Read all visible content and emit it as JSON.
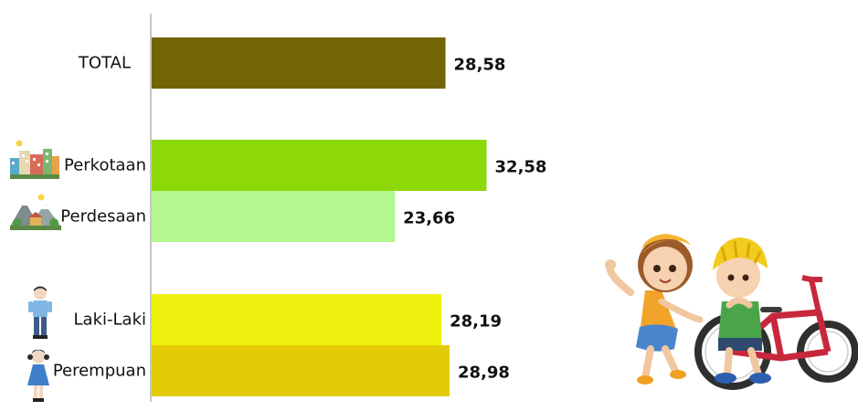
{
  "chart_data": {
    "type": "bar",
    "orientation": "horizontal",
    "categories": [
      "TOTAL",
      "Perkotaan",
      "Perdesaan",
      "Laki-Laki",
      "Perempuan"
    ],
    "values": [
      28.58,
      32.58,
      23.66,
      28.19,
      28.98
    ],
    "value_labels": [
      "28,58",
      "32,58",
      "23,66",
      "28,19",
      "28,98"
    ],
    "xlim": [
      0,
      40
    ],
    "grid": false,
    "legend": "none"
  },
  "colors": {
    "TOTAL": "#726505",
    "Perkotaan": "#8dd907",
    "Perdesaan": "#b3f88f",
    "Laki-Laki": "#eef10e",
    "Perempuan": "#e3cc07"
  },
  "icons": {
    "Perkotaan": "city-buildings-icon",
    "Perdesaan": "village-mountains-icon",
    "Laki-Laki": "boy-figure-icon",
    "Perempuan": "girl-figure-icon",
    "illustration": "children-with-bicycle-illustration"
  }
}
